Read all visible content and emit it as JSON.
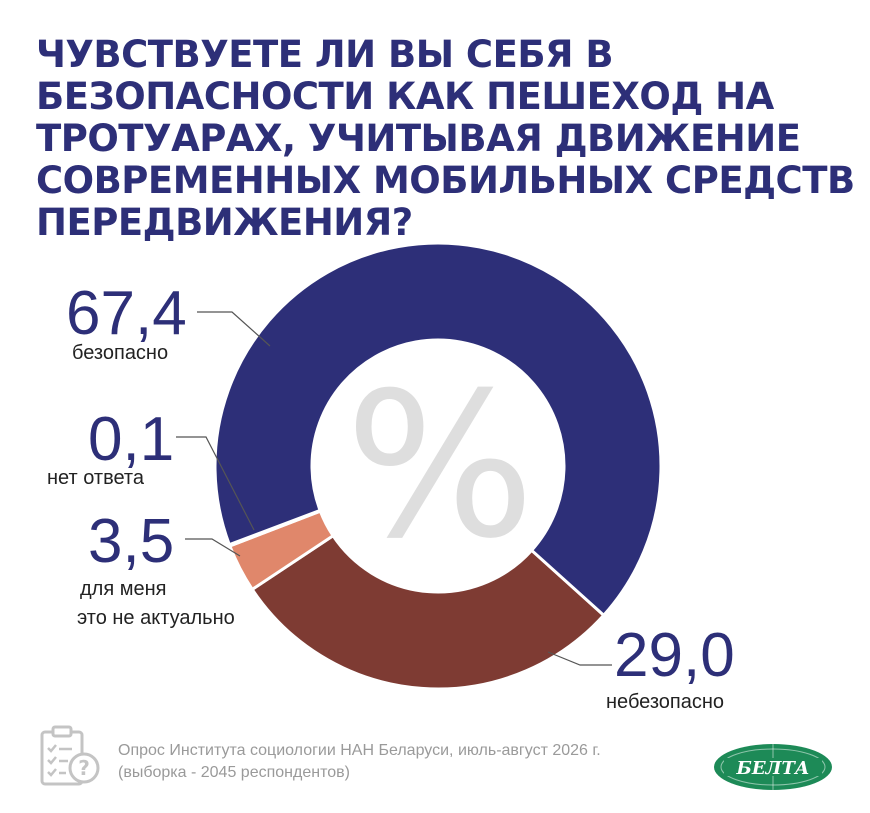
{
  "title": "ЧУВСТВУЕТЕ ЛИ ВЫ СЕБЯ В БЕЗОПАСНОСТИ КАК ПЕШЕХОД НА ТРОТУАРАХ, УЧИТЫВАЯ ДВИЖЕНИЕ СОВРЕМЕННЫХ МОБИЛЬНЫХ СРЕДСТВ ПЕРЕДВИЖЕНИЯ?",
  "chart_data": {
    "type": "pie",
    "donut": true,
    "center_symbol": "%",
    "slices": [
      {
        "label": "безопасно",
        "value": 67.4,
        "value_text": "67,4",
        "color": "#2d2f78"
      },
      {
        "label": "небезопасно",
        "value": 29.0,
        "value_text": "29,0",
        "color": "#7e3b33"
      },
      {
        "label": "для меня это не актуально",
        "label_lines": [
          "для меня",
          "это не актуально"
        ],
        "value": 3.5,
        "value_text": "3,5",
        "color": "#e0876b"
      },
      {
        "label": "нет ответа",
        "value": 0.1,
        "value_text": "0,1",
        "color": "#b9b9bf"
      }
    ]
  },
  "footer": {
    "line1": "Опрос Института социологии НАН Беларуси, июль-август 2026 г.",
    "line2": "(выборка - 2045 респондентов)",
    "icon": "survey-clipboard-icon"
  },
  "logo": {
    "text": "БЕЛТА",
    "color": "#1d8a57"
  }
}
